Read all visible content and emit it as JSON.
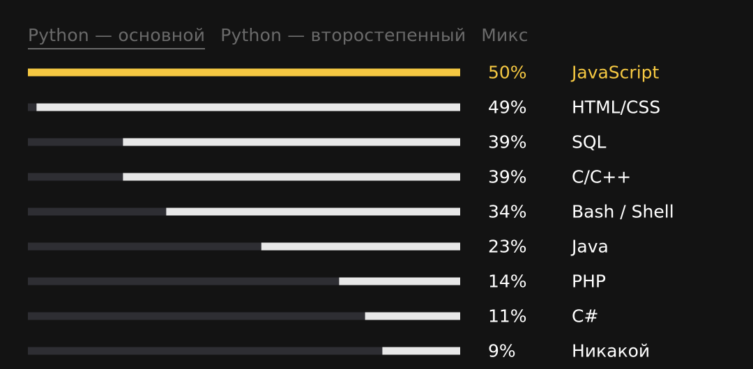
{
  "tabs": [
    {
      "label": "Python — основной",
      "active": true
    },
    {
      "label": "Python — второстепенный",
      "active": false
    },
    {
      "label": "Микс",
      "active": false
    }
  ],
  "colors": {
    "background": "#131313",
    "track": "#2e2e33",
    "bar": "#e8e8e8",
    "highlight": "#f5c842",
    "text": "#ffffff",
    "tab_text": "#6a6a6a"
  },
  "chart_data": {
    "type": "bar",
    "orientation": "horizontal",
    "direction": "right-to-left",
    "xlim": [
      0,
      50
    ],
    "highlight_index": 0,
    "categories": [
      "JavaScript",
      "HTML/CSS",
      "SQL",
      "C/C++",
      "Bash / Shell",
      "Java",
      "PHP",
      "C#",
      "Никакой"
    ],
    "values": [
      50,
      49,
      39,
      39,
      34,
      23,
      14,
      11,
      9
    ],
    "value_labels": [
      "50%",
      "49%",
      "39%",
      "39%",
      "34%",
      "23%",
      "14%",
      "11%",
      "9%"
    ]
  }
}
